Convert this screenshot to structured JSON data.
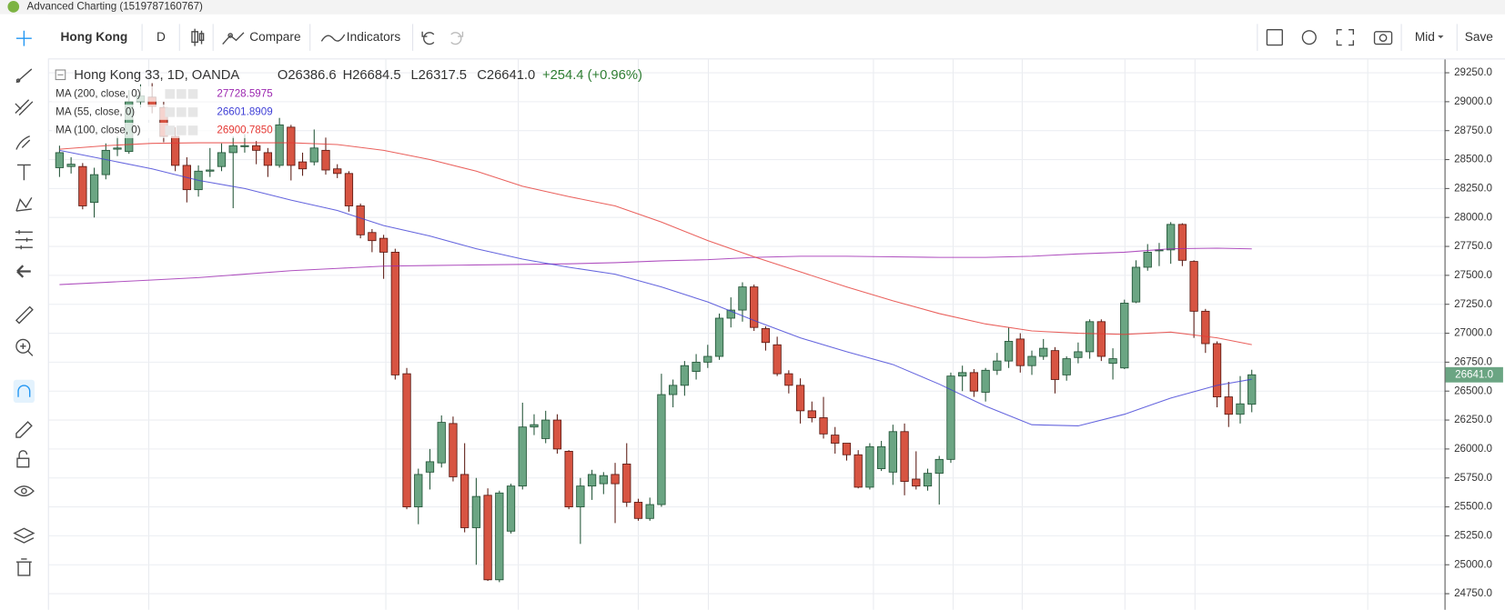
{
  "window_title": "Advanced Charting (1519787160767)",
  "toolbar": {
    "symbol": "Hong Kong",
    "interval": "D",
    "compare": "Compare",
    "indicators": "Indicators",
    "price_type": "Mid",
    "save": "Save"
  },
  "chart_data": {
    "type": "candlestick",
    "title": "Hong Kong 33, 1D, OANDA",
    "ohlc_labels": [
      "O26386.6",
      "H26684.5",
      "L26317.5",
      "C26641.0"
    ],
    "change_label": "+254.4 (+0.96%)",
    "last_price_label": "26641.0",
    "up_color": "#6ba583",
    "down_color": "#d75442",
    "open": [
      28430,
      28440,
      28440,
      28130,
      28370,
      28590,
      28570,
      29000,
      29040,
      28950,
      28700,
      28450,
      28240,
      28400,
      28440,
      28560,
      28620,
      28620,
      28560,
      28450,
      28780,
      28480,
      28480,
      28580,
      28420,
      28380,
      28100,
      27870,
      27820,
      27700,
      26650,
      25500,
      25800,
      25880,
      26220,
      25780,
      25320,
      25600,
      24870,
      25290,
      25680,
      26190,
      26090,
      26250,
      25980,
      25500,
      25680,
      25700,
      25780,
      25870,
      25540,
      25400,
      25520,
      26470,
      26550,
      26670,
      26750,
      26800,
      27130,
      27200,
      27400,
      27040,
      26900,
      26650,
      26550,
      26330,
      26270,
      26120,
      26050,
      25950,
      25670,
      25830,
      25800,
      26150,
      25740,
      25680,
      25790,
      25910,
      26630,
      26660,
      26490,
      26680,
      26760,
      26950,
      26720,
      26800,
      26850,
      26640,
      26790,
      26840,
      27100,
      26740,
      26700,
      27270,
      27570,
      27720,
      27720,
      27940,
      27620,
      27190,
      26910,
      26450,
      26300,
      26386.6
    ],
    "high": [
      28620,
      28520,
      28470,
      28430,
      28640,
      28700,
      29100,
      29150,
      29160,
      29000,
      28780,
      28520,
      28450,
      28600,
      28640,
      28700,
      28720,
      28660,
      28600,
      28860,
      28800,
      28560,
      28760,
      28690,
      28460,
      28400,
      28120,
      27900,
      27850,
      27730,
      26700,
      25830,
      26000,
      26290,
      26280,
      26050,
      25750,
      25660,
      25640,
      25700,
      26400,
      26300,
      26330,
      26300,
      25990,
      25750,
      25820,
      25800,
      25880,
      26050,
      25570,
      25580,
      26650,
      26600,
      26760,
      26820,
      26900,
      27170,
      27310,
      27440,
      27420,
      27060,
      26970,
      26680,
      26610,
      26410,
      26450,
      26190,
      26050,
      25990,
      26050,
      26070,
      26210,
      26220,
      25980,
      25830,
      25940,
      26660,
      26720,
      26690,
      26700,
      26830,
      27050,
      27000,
      26850,
      26950,
      26880,
      26800,
      26920,
      27120,
      27120,
      26870,
      27290,
      27630,
      27770,
      27780,
      27960,
      27950,
      27630,
      27210,
      26930,
      26580,
      26630,
      26684.5
    ],
    "low": [
      28350,
      28380,
      28070,
      28000,
      28330,
      28530,
      28550,
      28950,
      28900,
      28650,
      28400,
      28130,
      28180,
      28350,
      28400,
      28080,
      28560,
      28460,
      28350,
      28430,
      28320,
      28360,
      28450,
      28370,
      28340,
      28050,
      27820,
      27700,
      27470,
      26600,
      25480,
      25350,
      25650,
      25840,
      25720,
      25280,
      25000,
      24860,
      24850,
      25270,
      25650,
      26120,
      26050,
      25960,
      25480,
      25180,
      25560,
      25610,
      25360,
      25500,
      25380,
      25380,
      25500,
      26360,
      26460,
      26600,
      26700,
      26770,
      27050,
      27100,
      27020,
      26850,
      26630,
      26480,
      26220,
      26230,
      26090,
      25960,
      25900,
      25660,
      25650,
      25810,
      25690,
      25600,
      25650,
      25640,
      25520,
      25880,
      26500,
      26450,
      26410,
      26640,
      26700,
      26660,
      26640,
      26770,
      26480,
      26590,
      26740,
      26780,
      26760,
      26600,
      26690,
      27260,
      27540,
      27580,
      27600,
      27580,
      26960,
      26830,
      26360,
      26190,
      26220,
      26317.5
    ],
    "close": [
      28560,
      28460,
      28100,
      28370,
      28580,
      28600,
      29000,
      29050,
      28960,
      28700,
      28450,
      28240,
      28400,
      28410,
      28560,
      28620,
      28620,
      28580,
      28450,
      28800,
      28450,
      28420,
      28600,
      28410,
      28380,
      28100,
      27850,
      27800,
      27700,
      26640,
      25500,
      25780,
      25890,
      26230,
      25760,
      25320,
      25590,
      24870,
      25620,
      25680,
      26190,
      26210,
      26250,
      26000,
      25500,
      25680,
      25780,
      25770,
      25700,
      25540,
      25400,
      25520,
      26470,
      26550,
      26720,
      26750,
      26800,
      27130,
      27200,
      27400,
      27050,
      26920,
      26650,
      26550,
      26330,
      26270,
      26130,
      26050,
      25950,
      25670,
      26020,
      26020,
      26150,
      25720,
      25680,
      25790,
      25910,
      26630,
      26660,
      26500,
      26680,
      26760,
      26930,
      26720,
      26800,
      26870,
      26600,
      26780,
      26840,
      27100,
      26800,
      26780,
      27260,
      27570,
      27700,
      27720,
      27940,
      27630,
      27190,
      26910,
      26450,
      26300,
      26390,
      26641.0
    ],
    "indicators": [
      {
        "name": "MA (200, close, 0)",
        "value_label": "27728.5975",
        "color": "#9c27b0",
        "x": [
          0,
          4,
          8,
          12,
          16,
          20,
          24,
          28,
          32,
          36,
          40,
          44,
          48,
          52,
          56,
          60,
          64,
          68,
          72,
          76,
          80,
          84,
          88,
          92,
          96,
          100,
          103
        ],
        "values": [
          27420,
          27440,
          27460,
          27480,
          27510,
          27540,
          27560,
          27580,
          27585,
          27590,
          27595,
          27600,
          27610,
          27625,
          27635,
          27655,
          27665,
          27665,
          27660,
          27655,
          27655,
          27665,
          27685,
          27700,
          27730,
          27735,
          27729
        ]
      },
      {
        "name": "MA (55, close, 0)",
        "value_label": "26601.8909",
        "color": "#3f3fd6",
        "x": [
          0,
          4,
          8,
          12,
          16,
          20,
          24,
          28,
          32,
          36,
          40,
          44,
          48,
          52,
          56,
          60,
          64,
          68,
          72,
          76,
          80,
          84,
          88,
          92,
          96,
          100,
          103
        ],
        "values": [
          28580,
          28500,
          28420,
          28320,
          28250,
          28150,
          28060,
          27930,
          27840,
          27730,
          27640,
          27570,
          27510,
          27400,
          27270,
          27110,
          26960,
          26840,
          26730,
          26560,
          26370,
          26210,
          26200,
          26300,
          26440,
          26550,
          26602
        ]
      },
      {
        "name": "MA (100, close, 0)",
        "value_label": "26900.7850",
        "color": "#e53935",
        "x": [
          0,
          4,
          8,
          12,
          16,
          20,
          24,
          28,
          32,
          36,
          40,
          44,
          48,
          52,
          56,
          60,
          64,
          68,
          72,
          76,
          80,
          84,
          88,
          92,
          96,
          100,
          103
        ],
        "values": [
          28590,
          28620,
          28640,
          28645,
          28645,
          28645,
          28630,
          28580,
          28500,
          28400,
          28270,
          28180,
          28100,
          27960,
          27800,
          27660,
          27530,
          27400,
          27280,
          27170,
          27080,
          27020,
          27000,
          26990,
          27010,
          26960,
          26901
        ]
      }
    ],
    "ylim": [
      24610,
      29365
    ],
    "yticks": [
      {
        "value": 24750,
        "label": "24750.0"
      },
      {
        "value": 25000,
        "label": "25000.0"
      },
      {
        "value": 25250,
        "label": "25250.0"
      },
      {
        "value": 25500,
        "label": "25500.0"
      },
      {
        "value": 25750,
        "label": "25750.0"
      },
      {
        "value": 26000,
        "label": "26000.0"
      },
      {
        "value": 26250,
        "label": "26250.0"
      },
      {
        "value": 26500,
        "label": "26500.0"
      },
      {
        "value": 26750,
        "label": "26750.0"
      },
      {
        "value": 27000,
        "label": "27000.0"
      },
      {
        "value": 27250,
        "label": "27250.0"
      },
      {
        "value": 27500,
        "label": "27500.0"
      },
      {
        "value": 27750,
        "label": "27750.0"
      },
      {
        "value": 28000,
        "label": "28000.0"
      },
      {
        "value": 28250,
        "label": "28250.0"
      },
      {
        "value": 28500,
        "label": "28500.0"
      },
      {
        "value": 28750,
        "label": "28750.0"
      },
      {
        "value": 29000,
        "label": "29000.0"
      },
      {
        "value": 29250,
        "label": "29250.0"
      }
    ],
    "grid": true
  }
}
